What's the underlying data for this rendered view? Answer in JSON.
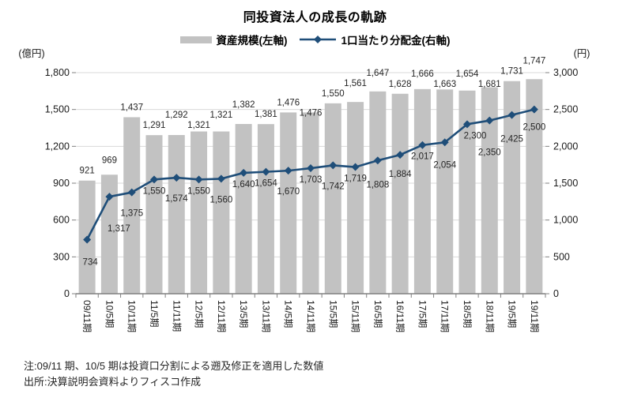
{
  "title": "同投資法人の成長の軌跡",
  "legend": [
    {
      "label": "資産規模(左軸)",
      "swatch": "bar-swatch",
      "color": "#C2C2C2"
    },
    {
      "label": "1口当たり分配金(右軸)",
      "swatch": "line-diamond-swatch",
      "color": "#1F4E79"
    }
  ],
  "left_axis": {
    "unit": "(億円)",
    "ticks": [
      "0",
      "300",
      "600",
      "900",
      "1,200",
      "1,500",
      "1,800"
    ],
    "min": 0,
    "max": 1800,
    "step": 300
  },
  "right_axis": {
    "unit": "(円)",
    "ticks": [
      "0",
      "500",
      "1,000",
      "1,500",
      "2,000",
      "2,500",
      "3,000"
    ],
    "min": 0,
    "max": 3000,
    "step": 500
  },
  "notes": [
    "注:09/11 期、10/5 期は投資口分割による遡及修正を適用した数値",
    "出所:決算説明会資料よりフィスコ作成"
  ],
  "colors": {
    "bar": "#C2C2C2",
    "line": "#1F4E79",
    "gridline": "#D9D9D9",
    "axis": "#808080",
    "label": "#262626"
  },
  "chart_data": {
    "type": "bar+line",
    "title": "同投資法人の成長の軌跡",
    "categories": [
      "09/11期",
      "10/5期",
      "10/11期",
      "11/5期",
      "11/11期",
      "12/5期",
      "12/11期",
      "13/5期",
      "13/11期",
      "14/5期",
      "14/11期",
      "15/5期",
      "15/11期",
      "16/5期",
      "16/11期",
      "17/5期",
      "17/11期",
      "18/5期",
      "18/11期",
      "19/5期",
      "19/11期"
    ],
    "series": [
      {
        "name": "資産規模(左軸)",
        "type": "bar",
        "axis": "left",
        "color": "#C2C2C2",
        "values": [
          921,
          969,
          1437,
          1291,
          1292,
          1321,
          1321,
          1382,
          1381,
          1476,
          1476,
          1550,
          1561,
          1647,
          1628,
          1666,
          1663,
          1654,
          1681,
          1731,
          1747
        ]
      },
      {
        "name": "1口当たり分配金(右軸)",
        "type": "line",
        "axis": "right",
        "color": "#1F4E79",
        "marker": "diamond",
        "values": [
          734,
          1317,
          1375,
          1550,
          1574,
          1550,
          1560,
          1640,
          1654,
          1670,
          1703,
          1742,
          1719,
          1808,
          1884,
          2017,
          2054,
          2300,
          2350,
          2425,
          2500
        ]
      }
    ],
    "left_ylim": [
      0,
      1800
    ],
    "right_ylim": [
      0,
      3000
    ],
    "grid": true,
    "legend_position": "top",
    "data_labels": true
  }
}
